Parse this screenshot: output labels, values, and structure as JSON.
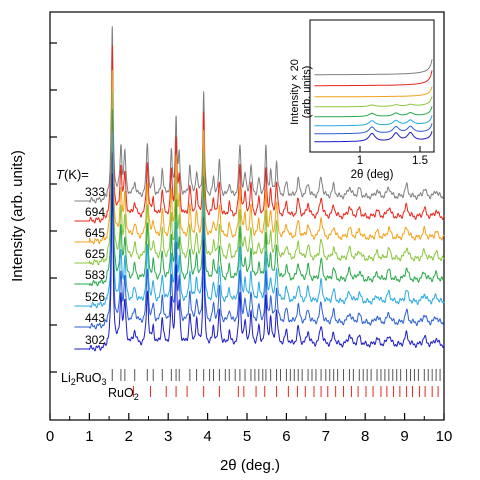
{
  "chart_data": {
    "type": "line",
    "xlabel": "2θ (deg.)",
    "ylabel": "Intensity (arb. units)",
    "xlim": [
      0,
      10
    ],
    "xticks": [
      "0",
      "1",
      "2",
      "3",
      "4",
      "5",
      "6",
      "7",
      "8",
      "9",
      "10"
    ],
    "grid": false,
    "temperature_header": {
      "italic": "T",
      "rest": "(K)="
    },
    "series": [
      {
        "name": "333",
        "color": "#7f7f7f"
      },
      {
        "name": "694",
        "color": "#e8261c"
      },
      {
        "name": "645",
        "color": "#f2a31b"
      },
      {
        "name": "625",
        "color": "#8cc63f"
      },
      {
        "name": "583",
        "color": "#2aa84a"
      },
      {
        "name": "526",
        "color": "#29a9e1"
      },
      {
        "name": "443",
        "color": "#2b5fd6"
      },
      {
        "name": "302",
        "color": "#1c1cc8"
      }
    ],
    "peaks": [
      {
        "x": 1.58,
        "h": 1.0,
        "w": 0.025
      },
      {
        "x": 1.8,
        "h": 0.28,
        "w": 0.03
      },
      {
        "x": 1.9,
        "h": 0.24,
        "w": 0.03
      },
      {
        "x": 2.15,
        "h": 0.08,
        "w": 0.04
      },
      {
        "x": 2.47,
        "h": 0.32,
        "w": 0.03
      },
      {
        "x": 2.62,
        "h": 0.1,
        "w": 0.03
      },
      {
        "x": 2.85,
        "h": 0.16,
        "w": 0.03
      },
      {
        "x": 3.08,
        "h": 0.26,
        "w": 0.025
      },
      {
        "x": 3.2,
        "h": 0.45,
        "w": 0.025
      },
      {
        "x": 3.28,
        "h": 0.22,
        "w": 0.025
      },
      {
        "x": 3.55,
        "h": 0.18,
        "w": 0.03
      },
      {
        "x": 3.72,
        "h": 0.14,
        "w": 0.03
      },
      {
        "x": 3.9,
        "h": 0.62,
        "w": 0.022
      },
      {
        "x": 4.15,
        "h": 0.1,
        "w": 0.03
      },
      {
        "x": 4.3,
        "h": 0.2,
        "w": 0.03
      },
      {
        "x": 4.55,
        "h": 0.08,
        "w": 0.03
      },
      {
        "x": 4.82,
        "h": 0.3,
        "w": 0.03
      },
      {
        "x": 4.95,
        "h": 0.12,
        "w": 0.03
      },
      {
        "x": 5.1,
        "h": 0.18,
        "w": 0.03
      },
      {
        "x": 5.3,
        "h": 0.1,
        "w": 0.03
      },
      {
        "x": 5.48,
        "h": 0.28,
        "w": 0.025
      },
      {
        "x": 5.6,
        "h": 0.14,
        "w": 0.03
      },
      {
        "x": 5.75,
        "h": 0.2,
        "w": 0.03
      },
      {
        "x": 6.0,
        "h": 0.08,
        "w": 0.04
      },
      {
        "x": 6.3,
        "h": 0.1,
        "w": 0.04
      },
      {
        "x": 6.55,
        "h": 0.08,
        "w": 0.04
      },
      {
        "x": 6.88,
        "h": 0.12,
        "w": 0.04
      },
      {
        "x": 7.2,
        "h": 0.07,
        "w": 0.04
      },
      {
        "x": 7.6,
        "h": 0.06,
        "w": 0.05
      },
      {
        "x": 7.85,
        "h": 0.05,
        "w": 0.05
      },
      {
        "x": 8.3,
        "h": 0.04,
        "w": 0.05
      },
      {
        "x": 8.6,
        "h": 0.06,
        "w": 0.05
      },
      {
        "x": 9.05,
        "h": 0.07,
        "w": 0.05
      },
      {
        "x": 9.5,
        "h": 0.05,
        "w": 0.05
      },
      {
        "x": 9.8,
        "h": 0.04,
        "w": 0.05
      }
    ],
    "inset": {
      "xlabel": "2θ (deg)",
      "ylabel_line1": "Intensity × 20",
      "ylabel_line2": "(arb. units)",
      "xticks": [
        "1",
        "1.5"
      ],
      "xlim": [
        0.6,
        1.6
      ]
    },
    "reference_markers": [
      {
        "label_main": "Li",
        "label_sub1": "2",
        "label_mid": "RuO",
        "label_sub2": "3",
        "color": "#555555",
        "positions": [
          1.58,
          1.8,
          1.9,
          2.15,
          2.47,
          2.62,
          2.85,
          3.08,
          3.2,
          3.28,
          3.55,
          3.72,
          3.9,
          4.05,
          4.15,
          4.3,
          4.45,
          4.55,
          4.7,
          4.82,
          4.95,
          5.1,
          5.2,
          5.3,
          5.4,
          5.48,
          5.6,
          5.75,
          5.85,
          6.0,
          6.1,
          6.2,
          6.3,
          6.4,
          6.55,
          6.65,
          6.75,
          6.88,
          7.0,
          7.1,
          7.2,
          7.3,
          7.45,
          7.6,
          7.7,
          7.85,
          7.95,
          8.05,
          8.15,
          8.3,
          8.4,
          8.5,
          8.6,
          8.7,
          8.8,
          8.9,
          9.05,
          9.15,
          9.25,
          9.35,
          9.5,
          9.6,
          9.7,
          9.8,
          9.9
        ]
      },
      {
        "label_main": "RuO",
        "label_sub1": "2",
        "label_mid": "",
        "label_sub2": "",
        "color": "#e8261c",
        "positions": [
          2.12,
          2.55,
          2.95,
          3.2,
          3.48,
          3.9,
          4.3,
          4.78,
          4.92,
          5.23,
          5.45,
          5.75,
          6.05,
          6.28,
          6.48,
          6.7,
          6.88,
          7.05,
          7.25,
          7.45,
          7.65,
          7.82,
          8.02,
          8.2,
          8.4,
          8.55,
          8.72,
          8.88,
          9.05,
          9.2,
          9.38,
          9.52,
          9.7,
          9.85
        ]
      }
    ]
  }
}
